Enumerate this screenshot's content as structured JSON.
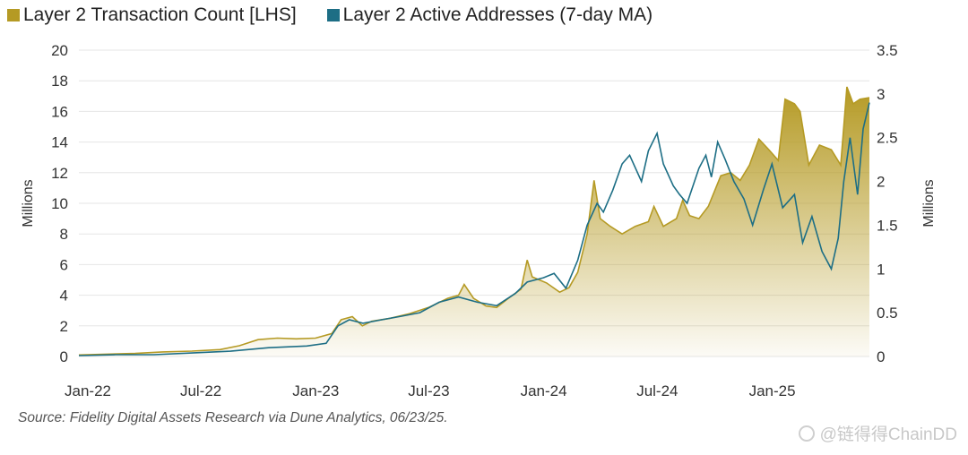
{
  "legend": {
    "series1_label": "Layer 2 Transaction Count [LHS]",
    "series2_label": "Layer 2 Active Addresses (7-day MA)"
  },
  "colors": {
    "gold": "#b59a24",
    "teal": "#1d6e85",
    "grid": "#e6e6e6"
  },
  "source": "Source: Fidelity Digital Assets Research via Dune Analytics, 06/23/25.",
  "watermark": "@链得得ChainDD",
  "chart_data": {
    "type": "area",
    "left_axis": {
      "label": "Millions",
      "ylim": [
        0,
        20
      ],
      "ticks": [
        0,
        2,
        4,
        6,
        8,
        10,
        12,
        14,
        16,
        18,
        20
      ]
    },
    "right_axis": {
      "label": "Millions",
      "ylim": [
        0,
        3.5
      ],
      "ticks": [
        "0",
        "0.5",
        "1",
        "1.5",
        "2",
        "2.5",
        "3",
        "3.5"
      ]
    },
    "x_tick_labels": [
      "Jan-22",
      "Jul-22",
      "Jan-23",
      "Jul-23",
      "Jan-24",
      "Jul-24",
      "Jan-25"
    ],
    "x_range": [
      "2022-01-01",
      "2025-06-20"
    ],
    "grid": true,
    "series": [
      {
        "name": "Layer 2 Transaction Count [LHS]",
        "axis": "left",
        "style": "area",
        "points": [
          [
            "2022-01-01",
            0.1
          ],
          [
            "2022-02-15",
            0.15
          ],
          [
            "2022-04-01",
            0.2
          ],
          [
            "2022-05-15",
            0.3
          ],
          [
            "2022-07-01",
            0.35
          ],
          [
            "2022-08-15",
            0.45
          ],
          [
            "2022-09-15",
            0.7
          ],
          [
            "2022-10-15",
            1.1
          ],
          [
            "2022-11-15",
            1.2
          ],
          [
            "2022-12-15",
            1.15
          ],
          [
            "2023-01-15",
            1.2
          ],
          [
            "2023-02-10",
            1.5
          ],
          [
            "2023-02-25",
            2.4
          ],
          [
            "2023-03-15",
            2.6
          ],
          [
            "2023-03-31",
            2.0
          ],
          [
            "2023-04-15",
            2.3
          ],
          [
            "2023-05-15",
            2.5
          ],
          [
            "2023-06-15",
            2.8
          ],
          [
            "2023-07-15",
            3.2
          ],
          [
            "2023-08-15",
            3.8
          ],
          [
            "2023-09-01",
            4.0
          ],
          [
            "2023-09-10",
            4.7
          ],
          [
            "2023-09-25",
            3.8
          ],
          [
            "2023-10-15",
            3.3
          ],
          [
            "2023-11-01",
            3.2
          ],
          [
            "2023-11-20",
            3.8
          ],
          [
            "2023-12-10",
            4.4
          ],
          [
            "2023-12-20",
            6.3
          ],
          [
            "2023-12-28",
            5.2
          ],
          [
            "2024-01-20",
            4.8
          ],
          [
            "2024-02-10",
            4.2
          ],
          [
            "2024-02-25",
            4.5
          ],
          [
            "2024-03-10",
            5.5
          ],
          [
            "2024-03-25",
            8.0
          ],
          [
            "2024-04-05",
            11.5
          ],
          [
            "2024-04-15",
            9.0
          ],
          [
            "2024-05-01",
            8.5
          ],
          [
            "2024-05-20",
            8.0
          ],
          [
            "2024-06-10",
            8.5
          ],
          [
            "2024-07-01",
            8.8
          ],
          [
            "2024-07-10",
            9.8
          ],
          [
            "2024-07-25",
            8.5
          ],
          [
            "2024-08-15",
            9.0
          ],
          [
            "2024-08-25",
            10.2
          ],
          [
            "2024-09-05",
            9.2
          ],
          [
            "2024-09-20",
            9.0
          ],
          [
            "2024-10-05",
            9.8
          ],
          [
            "2024-10-25",
            11.8
          ],
          [
            "2024-11-10",
            12.0
          ],
          [
            "2024-11-25",
            11.5
          ],
          [
            "2024-12-10",
            12.5
          ],
          [
            "2024-12-25",
            14.2
          ],
          [
            "2025-01-10",
            13.5
          ],
          [
            "2025-01-25",
            12.8
          ],
          [
            "2025-02-05",
            16.8
          ],
          [
            "2025-02-20",
            16.5
          ],
          [
            "2025-03-01",
            16.0
          ],
          [
            "2025-03-15",
            12.5
          ],
          [
            "2025-04-01",
            13.8
          ],
          [
            "2025-04-20",
            13.5
          ],
          [
            "2025-05-05",
            12.5
          ],
          [
            "2025-05-15",
            17.6
          ],
          [
            "2025-05-25",
            16.5
          ],
          [
            "2025-06-05",
            16.8
          ],
          [
            "2025-06-20",
            16.9
          ]
        ]
      },
      {
        "name": "Layer 2 Active Addresses (7-day MA)",
        "axis": "right",
        "style": "line",
        "points": [
          [
            "2022-01-01",
            0.01
          ],
          [
            "2022-03-01",
            0.02
          ],
          [
            "2022-05-01",
            0.02
          ],
          [
            "2022-07-01",
            0.04
          ],
          [
            "2022-09-01",
            0.06
          ],
          [
            "2022-11-01",
            0.1
          ],
          [
            "2023-01-01",
            0.12
          ],
          [
            "2023-02-01",
            0.15
          ],
          [
            "2023-02-20",
            0.35
          ],
          [
            "2023-03-10",
            0.42
          ],
          [
            "2023-04-01",
            0.38
          ],
          [
            "2023-05-01",
            0.42
          ],
          [
            "2023-06-01",
            0.46
          ],
          [
            "2023-07-01",
            0.5
          ],
          [
            "2023-08-01",
            0.62
          ],
          [
            "2023-09-01",
            0.68
          ],
          [
            "2023-10-01",
            0.62
          ],
          [
            "2023-11-01",
            0.58
          ],
          [
            "2023-12-01",
            0.72
          ],
          [
            "2023-12-20",
            0.85
          ],
          [
            "2024-01-15",
            0.9
          ],
          [
            "2024-02-01",
            0.95
          ],
          [
            "2024-02-20",
            0.78
          ],
          [
            "2024-03-10",
            1.1
          ],
          [
            "2024-03-25",
            1.5
          ],
          [
            "2024-04-10",
            1.75
          ],
          [
            "2024-04-20",
            1.65
          ],
          [
            "2024-05-05",
            1.9
          ],
          [
            "2024-05-20",
            2.2
          ],
          [
            "2024-06-01",
            2.3
          ],
          [
            "2024-06-20",
            2.0
          ],
          [
            "2024-07-01",
            2.35
          ],
          [
            "2024-07-15",
            2.55
          ],
          [
            "2024-07-25",
            2.2
          ],
          [
            "2024-08-10",
            1.95
          ],
          [
            "2024-08-20",
            1.85
          ],
          [
            "2024-09-01",
            1.75
          ],
          [
            "2024-09-20",
            2.15
          ],
          [
            "2024-10-01",
            2.3
          ],
          [
            "2024-10-10",
            2.05
          ],
          [
            "2024-10-20",
            2.45
          ],
          [
            "2024-11-01",
            2.25
          ],
          [
            "2024-11-15",
            2.0
          ],
          [
            "2024-12-01",
            1.8
          ],
          [
            "2024-12-15",
            1.5
          ],
          [
            "2025-01-01",
            1.9
          ],
          [
            "2025-01-15",
            2.2
          ],
          [
            "2025-02-01",
            1.7
          ],
          [
            "2025-02-20",
            1.85
          ],
          [
            "2025-03-05",
            1.3
          ],
          [
            "2025-03-20",
            1.6
          ],
          [
            "2025-04-05",
            1.2
          ],
          [
            "2025-04-20",
            1.0
          ],
          [
            "2025-05-01",
            1.35
          ],
          [
            "2025-05-10",
            2.0
          ],
          [
            "2025-05-20",
            2.5
          ],
          [
            "2025-06-01",
            1.85
          ],
          [
            "2025-06-10",
            2.6
          ],
          [
            "2025-06-20",
            2.9
          ]
        ]
      }
    ]
  }
}
